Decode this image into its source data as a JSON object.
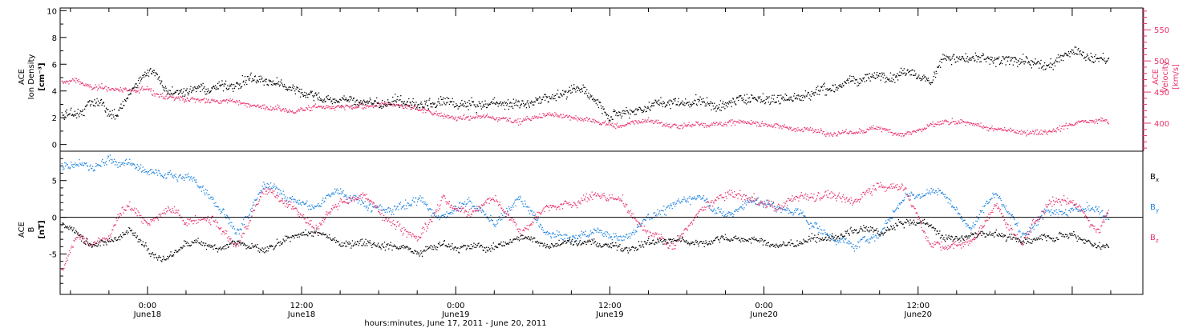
{
  "xaxis": {
    "ticks": [
      {
        "time": "0:00",
        "date": "June18"
      },
      {
        "time": "12:00",
        "date": "June18"
      },
      {
        "time": "0:00",
        "date": "June19"
      },
      {
        "time": "12:00",
        "date": "June19"
      },
      {
        "time": "0:00",
        "date": "June20"
      },
      {
        "time": "12:00",
        "date": "June20"
      }
    ],
    "label": "hours:minutes, June 17, 2011 - June 20, 2011"
  },
  "panels": {
    "top": {
      "left_label": [
        "ACE",
        "Ion Density",
        "[cm⁻³]"
      ],
      "right_label": [
        "ACE",
        "Velocity",
        "[km/s]"
      ]
    },
    "bottom": {
      "left_label": [
        "ACE",
        "B",
        "[nT]"
      ],
      "legend": [
        {
          "name": "Bx",
          "base": "B",
          "sub": "x",
          "color": "#000000"
        },
        {
          "name": "By",
          "base": "B",
          "sub": "y",
          "color": "#1a82e0"
        },
        {
          "name": "Bz",
          "base": "B",
          "sub": "z",
          "color": "#e8336b"
        }
      ]
    }
  },
  "colors": {
    "density": "#000000",
    "velocity": "#e8336b",
    "bx": "#000000",
    "by": "#1a82e0",
    "bz": "#e8336b",
    "frame": "#000000"
  },
  "chart_data": [
    {
      "type": "scatter",
      "x_unit": "hours since 2011-06-17 00:00 UT",
      "xlim": [
        17.2,
        101.5
      ],
      "left_axis": {
        "ylabel": "Ion Density [cm-3]",
        "ylim": [
          -0.5,
          10.2
        ],
        "ticks": [
          0,
          2,
          4,
          6,
          8,
          10
        ]
      },
      "right_axis": {
        "ylabel": "Velocity [km/s]",
        "ylim": [
          355,
          585
        ],
        "ticks": [
          400,
          450,
          500,
          550
        ]
      },
      "series": [
        {
          "name": "Ion Density",
          "axis": "left",
          "x": [
            17.3,
            18.5,
            19.5,
            20.5,
            21.5,
            22.5,
            23.5,
            24.5,
            25.5,
            26.5,
            27.5,
            28.5,
            29.5,
            30.5,
            32,
            34,
            36,
            38,
            40,
            42,
            44,
            46,
            48,
            50,
            52,
            54,
            56,
            58,
            60,
            62,
            64,
            66,
            67,
            68,
            70,
            72,
            74,
            76,
            78,
            80,
            82,
            83.5,
            85,
            86,
            88,
            90,
            92,
            94,
            96,
            98,
            98.8
          ],
          "y": [
            2.2,
            2.5,
            3.3,
            3.0,
            2.0,
            3.8,
            5.0,
            5.6,
            4.2,
            4.0,
            4.3,
            4.1,
            4.4,
            4.6,
            5.2,
            4.6,
            4.0,
            3.5,
            3.2,
            3.0,
            3.0,
            2.9,
            2.8,
            2.7,
            2.9,
            3.2,
            3.8,
            4.1,
            2.6,
            3.1,
            3.5,
            3.5,
            3.7,
            3.3,
            3.5,
            3.7,
            3.8,
            4.3,
            4.8,
            5.0,
            5.4,
            6.0,
            5.2,
            6.8,
            6.5,
            6.2,
            6.5,
            6.1,
            7.0,
            6.4,
            6.2
          ]
        },
        {
          "name": "Velocity",
          "axis": "right",
          "x": [
            17.3,
            18.5,
            19.5,
            21,
            22.5,
            24,
            25.5,
            27,
            29,
            31,
            33,
            35,
            37,
            39,
            41,
            43,
            45,
            47,
            49,
            51,
            53,
            55,
            57,
            59,
            61,
            63,
            65,
            67,
            69,
            71,
            73,
            75,
            77,
            79,
            81,
            83,
            85,
            86,
            88,
            90,
            92,
            94,
            96,
            98,
            98.8
          ],
          "y": [
            465,
            470,
            458,
            455,
            452,
            455,
            440,
            436,
            437,
            434,
            428,
            420,
            428,
            425,
            424,
            426,
            422,
            414,
            410,
            411,
            408,
            414,
            412,
            402,
            396,
            405,
            396,
            402,
            404,
            403,
            398,
            392,
            388,
            386,
            391,
            385,
            398,
            402,
            395,
            386,
            384,
            390,
            402,
            412,
            407
          ]
        }
      ]
    },
    {
      "type": "scatter",
      "x_unit": "hours since 2011-06-17 00:00 UT",
      "xlim": [
        17.2,
        101.5
      ],
      "ylabel": "B [nT]",
      "ylim": [
        -10.5,
        9.0
      ],
      "ticks": [
        -5,
        0,
        5
      ],
      "series": [
        {
          "name": "Bx",
          "x": [
            17.3,
            18.5,
            19.5,
            21,
            22.5,
            24,
            25.5,
            27,
            29,
            31,
            33,
            35,
            37,
            39,
            41,
            43,
            45,
            47,
            49,
            51,
            53,
            55,
            57,
            59,
            61,
            63,
            65,
            67,
            69,
            71,
            73,
            75,
            77,
            79,
            81,
            83,
            85,
            86,
            88,
            90,
            92,
            94,
            96,
            98,
            98.8
          ],
          "y": [
            -0.8,
            -2.0,
            -3.5,
            -3.0,
            -1.5,
            -4.0,
            -5.5,
            -3.5,
            -4.0,
            -3.0,
            -4.5,
            -3.5,
            -2.5,
            -4.0,
            -3.0,
            -3.5,
            -4.0,
            -3.0,
            -3.5,
            -4.0,
            -2.5,
            -3.5,
            -3.0,
            -3.5,
            -4.0,
            -3.0,
            -3.0,
            -3.5,
            -2.5,
            -3.0,
            -4.0,
            -3.5,
            -3.0,
            -2.0,
            -2.5,
            -1.0,
            -1.5,
            -3.0,
            -2.5,
            -2.0,
            -3.5,
            -2.0,
            -1.5,
            -3.0,
            -3.5
          ]
        },
        {
          "name": "By",
          "x": [
            17.3,
            18.5,
            19.5,
            21,
            22.5,
            24,
            25.5,
            27,
            29,
            31,
            33,
            35,
            37,
            39,
            41,
            43,
            45,
            47,
            49,
            51,
            53,
            55,
            57,
            59,
            61,
            63,
            65,
            67,
            69,
            71,
            73,
            75,
            77,
            79,
            81,
            83,
            85,
            86,
            88,
            90,
            92,
            94,
            96,
            98,
            98.8
          ],
          "y": [
            7.0,
            7.2,
            6.5,
            7.5,
            7.0,
            6.0,
            5.8,
            5.5,
            3.5,
            -1.0,
            4.0,
            2.5,
            1.0,
            3.5,
            2.0,
            1.5,
            3.0,
            0.5,
            3.0,
            -1.0,
            2.5,
            -2.5,
            -3.5,
            -2.0,
            -3.0,
            1.0,
            2.0,
            3.5,
            0.5,
            2.5,
            1.5,
            0.0,
            -2.5,
            -3.5,
            -2.0,
            3.0,
            3.5,
            3.0,
            -1.5,
            4.0,
            -2.0,
            2.5,
            3.0,
            1.5,
            0.5
          ]
        },
        {
          "name": "Bz",
          "x": [
            17.3,
            18.5,
            19.5,
            21,
            22.5,
            24,
            25.5,
            27,
            29,
            31,
            33,
            35,
            37,
            39,
            41,
            43,
            45,
            47,
            49,
            51,
            53,
            55,
            57,
            59,
            61,
            63,
            65,
            67,
            69,
            71,
            73,
            75,
            77,
            79,
            81,
            83,
            85,
            86,
            88,
            90,
            92,
            94,
            96,
            98,
            98.8
          ],
          "y": [
            -7.5,
            -3.0,
            -4.5,
            -3.5,
            1.5,
            -1.0,
            0.5,
            -1.0,
            1.0,
            -3.0,
            3.5,
            2.5,
            -1.5,
            2.5,
            3.0,
            0.0,
            -2.0,
            3.0,
            1.5,
            3.5,
            -1.0,
            3.0,
            2.5,
            3.5,
            2.0,
            -1.5,
            -3.0,
            1.0,
            3.0,
            2.5,
            0.5,
            2.5,
            3.5,
            2.0,
            5.0,
            4.0,
            -3.5,
            -4.0,
            -3.5,
            1.5,
            -4.0,
            1.5,
            2.5,
            -1.5,
            1.5
          ]
        }
      ]
    }
  ]
}
